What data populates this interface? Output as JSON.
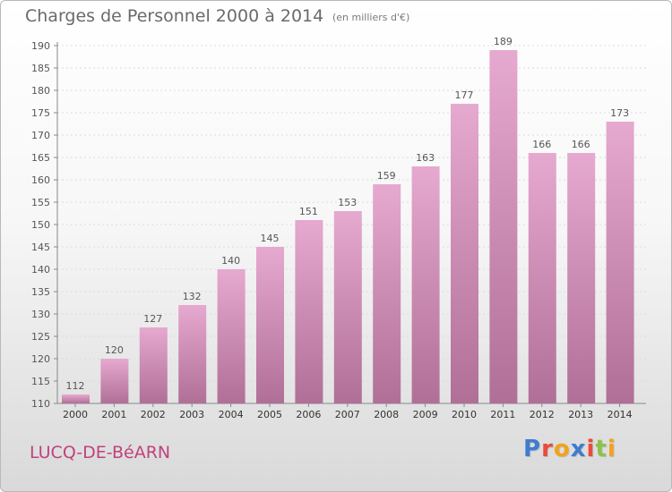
{
  "header": {
    "title": "Charges de Personnel 2000 à 2014",
    "subtitle": "(en milliers d'€)"
  },
  "footer": {
    "commune": "LUCQ-DE-BéARN",
    "logo": "Proxiti"
  },
  "colors": {
    "bar_top": "#e6a9cf",
    "bar_bottom": "#b06f97",
    "commune": "#c0427e",
    "logo_letters": [
      "#3f7ccf",
      "#e94b3c",
      "#f2a31b",
      "#3f7ccf",
      "#e94b3c",
      "#8bc34a",
      "#f2a31b"
    ]
  },
  "chart_data": {
    "type": "bar",
    "categories": [
      "2000",
      "2001",
      "2002",
      "2003",
      "2004",
      "2005",
      "2006",
      "2007",
      "2008",
      "2009",
      "2010",
      "2011",
      "2012",
      "2013",
      "2014"
    ],
    "values": [
      112,
      120,
      127,
      132,
      140,
      145,
      151,
      153,
      159,
      163,
      177,
      189,
      166,
      166,
      173
    ],
    "title": "Charges de Personnel 2000 à 2014",
    "ylim": [
      110,
      190
    ],
    "yticks": [
      110,
      115,
      120,
      125,
      130,
      135,
      140,
      145,
      150,
      155,
      160,
      165,
      170,
      175,
      180,
      185,
      190
    ],
    "grid": true
  }
}
